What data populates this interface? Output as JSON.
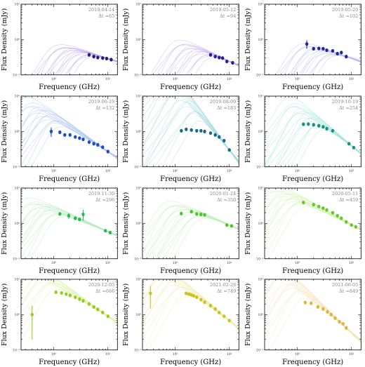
{
  "figure": {
    "xlabel": "Frequency (GHz)",
    "ylabel": "Flux Density (mJy)",
    "x_tick_labels": [
      "10⁰",
      "10¹"
    ],
    "y_tick_labels": [
      "10⁻¹",
      "10⁰",
      "10¹"
    ],
    "dt_prefix": "Δt ="
  },
  "chart_data": [
    {
      "type": "scatter",
      "date": "2019-04-14",
      "dt": "65",
      "color": "#2a1a7a",
      "band": "#b9a6e6",
      "xlim": [
        0.25,
        15
      ],
      "ylim": [
        0.1,
        10
      ],
      "points": [
        {
          "x": 4.5,
          "y": 0.37
        },
        {
          "x": 5.5,
          "y": 0.33
        },
        {
          "x": 6.5,
          "y": 0.31
        },
        {
          "x": 8,
          "y": 0.3
        },
        {
          "x": 9.5,
          "y": 0.29
        },
        {
          "x": 11.5,
          "y": 0.27
        }
      ]
    },
    {
      "type": "scatter",
      "date": "2019-05-12",
      "dt": "94",
      "color": "#2a1f8c",
      "band": "#bfb0ea",
      "xlim": [
        0.25,
        15
      ],
      "ylim": [
        0.1,
        10
      ],
      "points": [
        {
          "x": 4.5,
          "y": 0.37
        },
        {
          "x": 5.5,
          "y": 0.33
        },
        {
          "x": 6.5,
          "y": 0.31
        },
        {
          "x": 7.5,
          "y": 0.3
        },
        {
          "x": 9,
          "y": 0.24
        },
        {
          "x": 11.5,
          "y": 0.22
        }
      ]
    },
    {
      "type": "scatter",
      "date": "2019-05-20",
      "dt": "102",
      "color": "#23249b",
      "band": "#b8b9ee",
      "xlim": [
        0.25,
        15
      ],
      "ylim": [
        0.1,
        10
      ],
      "points": [
        {
          "x": 1.5,
          "y": 0.75,
          "err": 0.2
        },
        {
          "x": 2,
          "y": 0.55
        },
        {
          "x": 2.5,
          "y": 0.56
        },
        {
          "x": 3,
          "y": 0.55
        },
        {
          "x": 3.5,
          "y": 0.5
        },
        {
          "x": 4.5,
          "y": 0.48
        },
        {
          "x": 5.5,
          "y": 0.4
        },
        {
          "x": 6.5,
          "y": 0.43
        },
        {
          "x": 8,
          "y": 0.33
        }
      ]
    },
    {
      "type": "scatter",
      "date": "2019-06-19",
      "dt": "132",
      "color": "#1f4bc4",
      "band": "#aac2f0",
      "xlim": [
        0.25,
        15
      ],
      "ylim": [
        0.1,
        10
      ],
      "points": [
        {
          "x": 0.9,
          "y": 1.0,
          "err": 0.3
        },
        {
          "x": 1.3,
          "y": 0.95
        },
        {
          "x": 1.6,
          "y": 0.8
        },
        {
          "x": 2,
          "y": 0.8
        },
        {
          "x": 2.5,
          "y": 0.7
        },
        {
          "x": 3,
          "y": 0.65
        },
        {
          "x": 3.5,
          "y": 0.6
        },
        {
          "x": 4.5,
          "y": 0.5
        },
        {
          "x": 5.5,
          "y": 0.45
        },
        {
          "x": 6.5,
          "y": 0.42
        },
        {
          "x": 8,
          "y": 0.36
        },
        {
          "x": 10,
          "y": 0.27
        }
      ]
    },
    {
      "type": "scatter",
      "date": "2019-08-09",
      "dt": "183",
      "color": "#166a86",
      "band": "#9ed8df",
      "xlim": [
        0.25,
        15
      ],
      "ylim": [
        0.1,
        10
      ],
      "points": [
        {
          "x": 1.3,
          "y": 1.05
        },
        {
          "x": 1.6,
          "y": 1.15
        },
        {
          "x": 2,
          "y": 1.1
        },
        {
          "x": 2.5,
          "y": 1.05
        },
        {
          "x": 3,
          "y": 1.05
        },
        {
          "x": 3.5,
          "y": 1.0
        },
        {
          "x": 4.5,
          "y": 0.9
        },
        {
          "x": 5.5,
          "y": 0.8
        },
        {
          "x": 6.5,
          "y": 0.7
        },
        {
          "x": 8,
          "y": 0.55
        },
        {
          "x": 10,
          "y": 0.3
        }
      ]
    },
    {
      "type": "scatter",
      "date": "2019-10-19",
      "dt": "254",
      "color": "#1c8f84",
      "band": "#9fe6d8",
      "xlim": [
        0.25,
        15
      ],
      "ylim": [
        0.1,
        10
      ],
      "points": [
        {
          "x": 1.3,
          "y": 1.6
        },
        {
          "x": 1.6,
          "y": 1.62
        },
        {
          "x": 2,
          "y": 1.55
        },
        {
          "x": 2.5,
          "y": 1.45
        },
        {
          "x": 3,
          "y": 1.35
        },
        {
          "x": 3.5,
          "y": 1.2
        },
        {
          "x": 4.5,
          "y": 1.05
        },
        {
          "x": 9,
          "y": 0.45
        },
        {
          "x": 11,
          "y": 0.35
        }
      ]
    },
    {
      "type": "scatter",
      "date": "2019-11-30",
      "dt": "296",
      "color": "#2ab84f",
      "band": "#b4ecbb",
      "xlim": [
        0.25,
        15
      ],
      "ylim": [
        0.1,
        10
      ],
      "points": [
        {
          "x": 1.3,
          "y": 1.85
        },
        {
          "x": 1.9,
          "y": 1.65,
          "err": 0.3
        },
        {
          "x": 2.5,
          "y": 1.4
        },
        {
          "x": 3,
          "y": 1.3
        },
        {
          "x": 3.5,
          "y": 1.8,
          "err": 0.6
        },
        {
          "x": 9,
          "y": 0.62
        },
        {
          "x": 11,
          "y": 0.55
        }
      ]
    },
    {
      "type": "scatter",
      "date": "2020-01-24",
      "dt": "350",
      "color": "#4cc332",
      "band": "#c1eeb3",
      "xlim": [
        0.25,
        15
      ],
      "ylim": [
        0.1,
        10
      ],
      "points": [
        {
          "x": 1.3,
          "y": 1.9
        },
        {
          "x": 2,
          "y": 2.15
        },
        {
          "x": 2.5,
          "y": 1.85
        },
        {
          "x": 3,
          "y": 1.8
        },
        {
          "x": 3.5,
          "y": 1.75
        },
        {
          "x": 9,
          "y": 0.9
        },
        {
          "x": 11,
          "y": 0.85
        }
      ]
    },
    {
      "type": "scatter",
      "date": "2020-05-11",
      "dt": "459",
      "color": "#6bc72b",
      "band": "#cdf0ad",
      "xlim": [
        0.25,
        15
      ],
      "ylim": [
        0.1,
        10
      ],
      "points": [
        {
          "x": 1.3,
          "y": 3.9
        },
        {
          "x": 2,
          "y": 3.4
        },
        {
          "x": 2.5,
          "y": 3.0
        },
        {
          "x": 3,
          "y": 2.7
        },
        {
          "x": 3.5,
          "y": 2.4
        },
        {
          "x": 4.5,
          "y": 2.0
        },
        {
          "x": 5.5,
          "y": 1.65
        },
        {
          "x": 6.5,
          "y": 1.4
        },
        {
          "x": 8,
          "y": 1.1
        },
        {
          "x": 10,
          "y": 0.9
        },
        {
          "x": 12,
          "y": 0.8
        }
      ]
    },
    {
      "type": "scatter",
      "date": "2020-12-05",
      "dt": "666",
      "color": "#93cf1e",
      "band": "#dff2a8",
      "xlim": [
        0.25,
        15
      ],
      "ylim": [
        0.1,
        10
      ],
      "points": [
        {
          "x": 0.4,
          "y": 1.0,
          "err": 0.8
        },
        {
          "x": 1.1,
          "y": 4.3
        },
        {
          "x": 1.4,
          "y": 4.1
        },
        {
          "x": 1.7,
          "y": 3.8
        },
        {
          "x": 2,
          "y": 3.5
        },
        {
          "x": 2.5,
          "y": 3.1
        },
        {
          "x": 3,
          "y": 2.75
        },
        {
          "x": 3.5,
          "y": 2.45
        },
        {
          "x": 4.5,
          "y": 2.0
        },
        {
          "x": 5.5,
          "y": 1.65
        },
        {
          "x": 6.5,
          "y": 1.4
        },
        {
          "x": 8,
          "y": 1.15
        },
        {
          "x": 10,
          "y": 0.9
        }
      ]
    },
    {
      "type": "scatter",
      "date": "2021-02-26",
      "dt": "749",
      "color": "#c9c41e",
      "band": "#f0eaa8",
      "xlim": [
        0.25,
        15
      ],
      "ylim": [
        0.1,
        10
      ],
      "points": [
        {
          "x": 0.35,
          "y": 4.0,
          "err": 2.5
        },
        {
          "x": 1.6,
          "y": 4.0
        },
        {
          "x": 1.8,
          "y": 3.8
        },
        {
          "x": 2,
          "y": 3.6
        },
        {
          "x": 2.2,
          "y": 3.4
        },
        {
          "x": 2.5,
          "y": 3.1
        },
        {
          "x": 3,
          "y": 2.65
        },
        {
          "x": 3.5,
          "y": 2.25
        },
        {
          "x": 4.5,
          "y": 1.8
        },
        {
          "x": 5.5,
          "y": 1.45
        },
        {
          "x": 6.5,
          "y": 1.15
        },
        {
          "x": 8,
          "y": 0.9
        },
        {
          "x": 10,
          "y": 0.68
        }
      ]
    },
    {
      "type": "scatter",
      "date": "2021-06-05",
      "dt": "849",
      "color": "#e4b33c",
      "band": "#f5e2b6",
      "xlim": [
        0.25,
        15
      ],
      "ylim": [
        0.1,
        10
      ],
      "points": [
        {
          "x": 1.4,
          "y": 2.2
        },
        {
          "x": 1.8,
          "y": 2.1
        },
        {
          "x": 2.4,
          "y": 1.65
        },
        {
          "x": 3,
          "y": 1.45
        },
        {
          "x": 3.6,
          "y": 1.2
        },
        {
          "x": 4.2,
          "y": 1.0
        },
        {
          "x": 5,
          "y": 0.8
        },
        {
          "x": 6,
          "y": 0.63
        },
        {
          "x": 7,
          "y": 0.55
        },
        {
          "x": 8,
          "y": 0.42
        }
      ]
    }
  ]
}
